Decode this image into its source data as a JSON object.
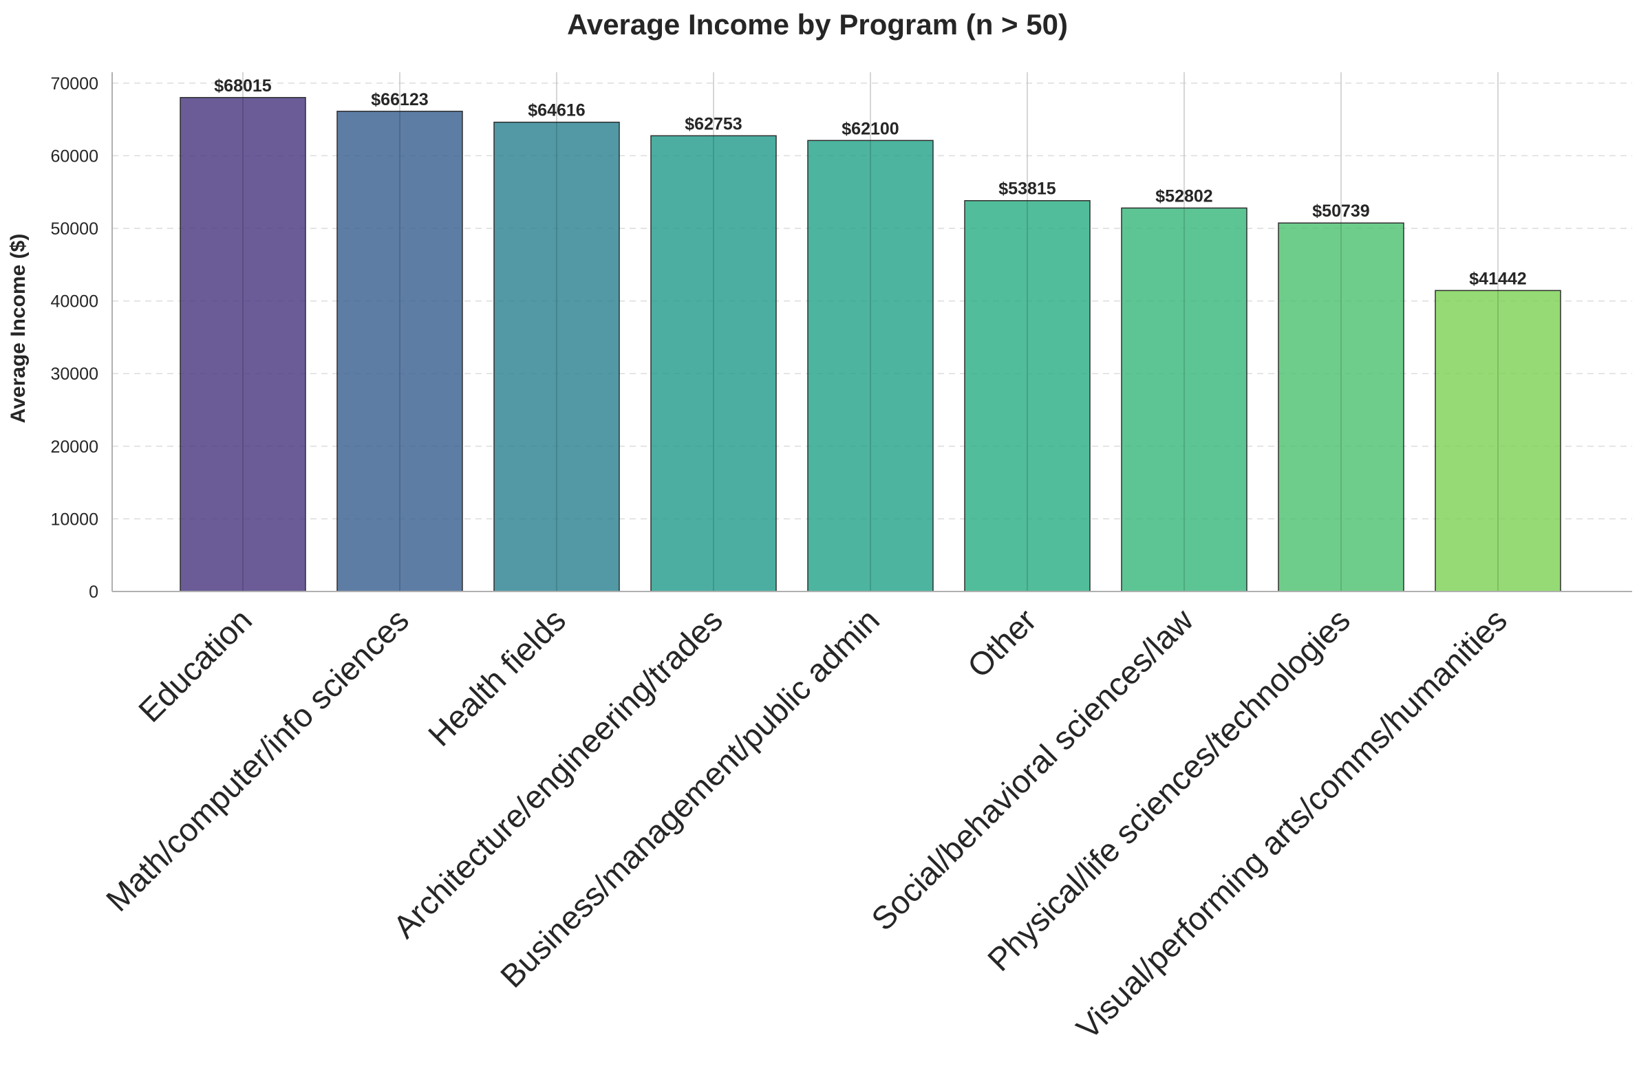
{
  "chart_data": {
    "type": "bar",
    "title": "Average Income by Program (n > 50)",
    "xlabel": "",
    "ylabel": "Average Income ($)",
    "ylim": [
      0,
      71500
    ],
    "yticks": [
      0,
      10000,
      20000,
      30000,
      40000,
      50000,
      60000,
      70000
    ],
    "grid": {
      "horizontal": "dashed",
      "vertical": "solid"
    },
    "categories": [
      "Education",
      "Math/computer/info sciences",
      "Health fields",
      "Architecture/engineering/trades",
      "Business/management/public admin",
      "Other",
      "Social/behavioral sciences/law",
      "Physical/life sciences/technologies",
      "Visual/performing arts/comms/humanities"
    ],
    "values": [
      68015,
      66123,
      64616,
      62753,
      62100,
      53815,
      52802,
      50739,
      41442
    ],
    "data_labels": [
      "$68015",
      "$66123",
      "$64616",
      "$62753",
      "$62100",
      "$53815",
      "$52802",
      "$50739",
      "$41442"
    ],
    "colors": [
      "#46337e",
      "#365c8d",
      "#277f8e",
      "#1f9a8a",
      "#1fa187",
      "#27ad81",
      "#35b779",
      "#4ac16d",
      "#7ad151"
    ]
  }
}
